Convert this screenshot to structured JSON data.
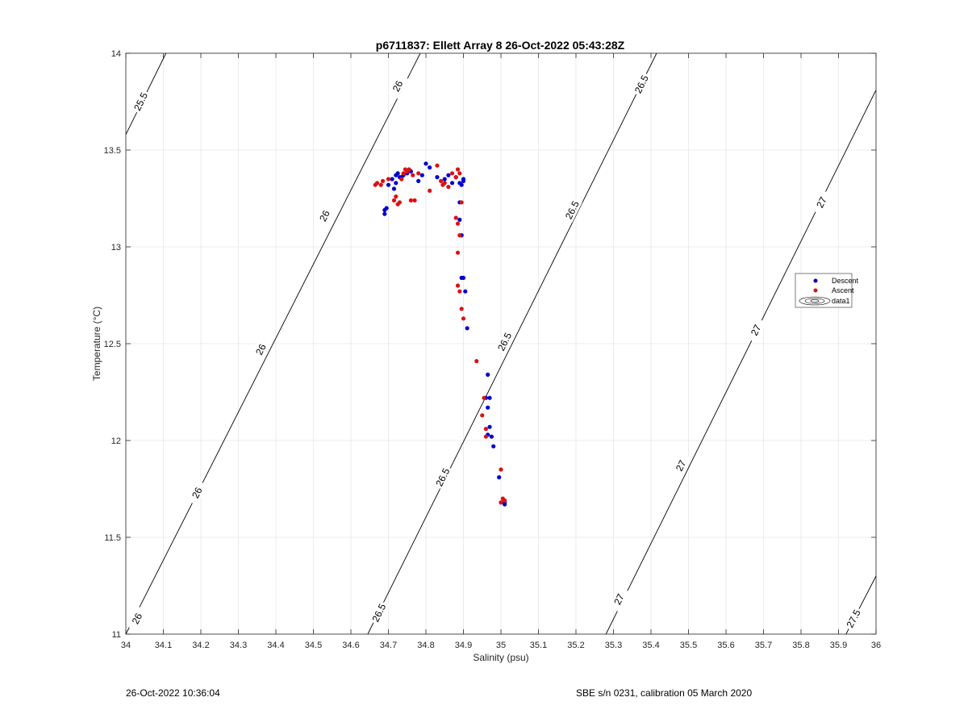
{
  "chart_data": {
    "type": "scatter",
    "title": "p6711837: Ellett Array 8 26-Oct-2022 05:43:28Z",
    "xlabel": "Salinity (psu)",
    "ylabel": "Temperature (°C)",
    "xlim": [
      34,
      36
    ],
    "ylim": [
      11,
      14
    ],
    "xticks": [
      "34",
      "34.1",
      "34.2",
      "34.3",
      "34.4",
      "34.5",
      "34.6",
      "34.7",
      "34.8",
      "34.9",
      "35",
      "35.1",
      "35.2",
      "35.3",
      "35.4",
      "35.5",
      "35.6",
      "35.7",
      "35.8",
      "35.9",
      "36"
    ],
    "yticks": [
      "11",
      "11.5",
      "12",
      "12.5",
      "13",
      "13.5",
      "14"
    ],
    "grid": true,
    "legend_position": "right",
    "legend": [
      "Descent",
      "Ascent",
      "data1"
    ],
    "series": [
      {
        "name": "Descent",
        "color": "#0000cc",
        "x": [
          34.69,
          34.69,
          34.695,
          34.7,
          34.71,
          34.715,
          34.72,
          34.72,
          34.725,
          34.73,
          34.735,
          34.74,
          34.75,
          34.76,
          34.78,
          34.79,
          34.8,
          34.81,
          34.83,
          34.85,
          34.86,
          34.87,
          34.88,
          34.89,
          34.895,
          34.9,
          34.9,
          34.89,
          34.89,
          34.895,
          34.895,
          34.905,
          34.9,
          34.91,
          34.965,
          34.96,
          34.97,
          34.965,
          34.97,
          34.965,
          34.975,
          34.98,
          34.995,
          35.0,
          35.01,
          35.01
        ],
        "y": [
          13.17,
          13.19,
          13.2,
          13.32,
          13.35,
          13.3,
          13.37,
          13.33,
          13.38,
          13.36,
          13.36,
          13.37,
          13.38,
          13.39,
          13.34,
          13.37,
          13.43,
          13.41,
          13.36,
          13.35,
          13.37,
          13.33,
          13.36,
          13.33,
          13.32,
          13.35,
          13.34,
          13.23,
          13.14,
          13.06,
          12.84,
          12.77,
          12.84,
          12.58,
          12.34,
          12.22,
          12.22,
          12.17,
          12.07,
          12.03,
          12.02,
          11.97,
          11.81,
          11.68,
          11.67,
          11.68
        ]
      },
      {
        "name": "Ascent",
        "color": "#dd1111",
        "x": [
          34.665,
          34.67,
          34.68,
          34.685,
          34.7,
          34.715,
          34.72,
          34.725,
          34.73,
          34.735,
          34.74,
          34.745,
          34.75,
          34.755,
          34.76,
          34.765,
          34.77,
          34.78,
          34.81,
          34.83,
          34.84,
          34.845,
          34.85,
          34.86,
          34.87,
          34.88,
          34.885,
          34.89,
          34.895,
          34.88,
          34.885,
          34.89,
          34.885,
          34.885,
          34.89,
          34.895,
          34.9,
          34.935,
          34.955,
          34.95,
          34.96,
          34.96,
          35.0,
          35.0,
          35.005,
          35.01
        ],
        "y": [
          13.32,
          13.33,
          13.32,
          13.34,
          13.35,
          13.24,
          13.26,
          13.22,
          13.23,
          13.35,
          13.38,
          13.4,
          13.39,
          13.4,
          13.24,
          13.37,
          13.24,
          13.38,
          13.29,
          13.42,
          13.34,
          13.32,
          13.33,
          13.31,
          13.38,
          13.36,
          13.4,
          13.38,
          13.23,
          13.15,
          13.12,
          13.06,
          12.97,
          12.8,
          12.77,
          12.68,
          12.63,
          12.41,
          12.22,
          12.13,
          12.06,
          12.02,
          11.85,
          11.68,
          11.7,
          11.69
        ]
      }
    ],
    "contours": [
      {
        "level": "25.5",
        "points": [
          [
            34.0,
            13.58
          ],
          [
            34.107,
            14.0
          ]
        ],
        "labels": [
          [
            34.04,
            13.75
          ]
        ]
      },
      {
        "level": "26",
        "points": [
          [
            34.0,
            11.0
          ],
          [
            34.785,
            14.0
          ]
        ],
        "labels": [
          [
            34.03,
            11.08
          ],
          [
            34.19,
            11.73
          ],
          [
            34.36,
            12.47
          ],
          [
            34.53,
            13.16
          ],
          [
            34.725,
            13.83
          ]
        ]
      },
      {
        "level": "26.5",
        "points": [
          [
            34.645,
            11.0
          ],
          [
            35.415,
            14.0
          ]
        ],
        "labels": [
          [
            34.675,
            11.11
          ],
          [
            34.845,
            11.81
          ],
          [
            35.01,
            12.51
          ],
          [
            35.19,
            13.19
          ],
          [
            35.375,
            13.84
          ]
        ]
      },
      {
        "level": "27",
        "points": [
          [
            35.28,
            11.0
          ],
          [
            36.0,
            13.81
          ]
        ],
        "labels": [
          [
            35.315,
            11.18
          ],
          [
            35.48,
            11.87
          ],
          [
            35.68,
            12.57
          ],
          [
            35.855,
            13.23
          ]
        ]
      },
      {
        "level": "27.5",
        "points": [
          [
            35.92,
            11.0
          ],
          [
            36.0,
            11.3
          ]
        ],
        "labels": [
          [
            35.94,
            11.08
          ]
        ]
      }
    ]
  },
  "footer": {
    "timestamp": "26-Oct-2022 10:36:04",
    "sensor": "SBE s/n 0231, calibration 05 March 2020"
  }
}
